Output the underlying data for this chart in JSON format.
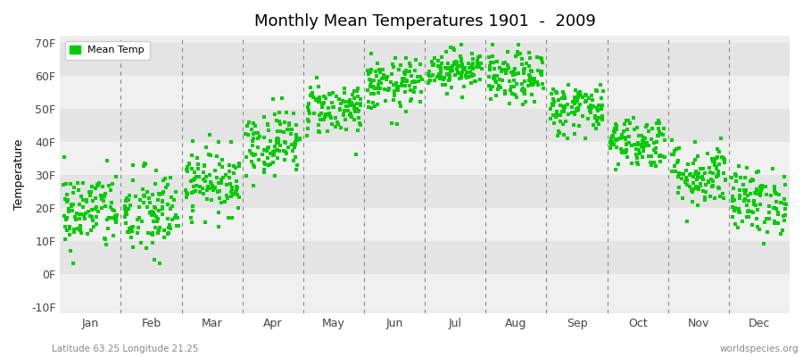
{
  "title": "Monthly Mean Temperatures 1901  -  2009",
  "ylabel": "Temperature",
  "subtitle_left": "Latitude 63.25 Longitude 21.25",
  "subtitle_right": "worldspecies.org",
  "legend_label": "Mean Temp",
  "fig_bg_color": "#ffffff",
  "plot_bg_color": "#eeeeee",
  "band_colors": [
    "#f0f0f0",
    "#e4e4e4"
  ],
  "marker_color": "#00cc00",
  "marker_style": "s",
  "marker_size": 2.5,
  "months": [
    "Jan",
    "Feb",
    "Mar",
    "Apr",
    "May",
    "Jun",
    "Jul",
    "Aug",
    "Sep",
    "Oct",
    "Nov",
    "Dec"
  ],
  "ylim": [
    -12,
    72
  ],
  "yticks": [
    -10,
    0,
    10,
    20,
    30,
    40,
    50,
    60,
    70
  ],
  "ytick_labels": [
    "-10F",
    "0F",
    "10F",
    "20F",
    "30F",
    "40F",
    "50F",
    "60F",
    "70F"
  ],
  "num_years": 109,
  "monthly_mean_F": [
    19,
    18,
    28,
    40,
    50,
    57,
    62,
    59,
    50,
    40,
    30,
    22
  ],
  "monthly_std_F": [
    6,
    7,
    5,
    5,
    4,
    4,
    3,
    4,
    4,
    4,
    5,
    5
  ]
}
